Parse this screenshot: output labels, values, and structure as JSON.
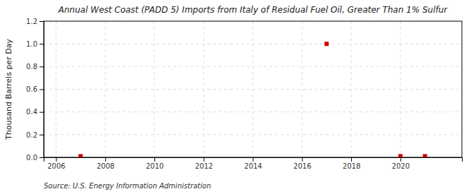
{
  "chart_data": {
    "type": "scatter",
    "title": "Annual West Coast (PADD 5) Imports from Italy of Residual Fuel Oil, Greater Than 1% Sulfur",
    "ylabel": "Thousand Barrels per Day",
    "source": "Source: U.S. Energy Information Administration",
    "x": [
      2007,
      2017,
      2020,
      2021
    ],
    "values": [
      0.01,
      1.0,
      0.01,
      0.01
    ],
    "color": "#cc0000",
    "marker": "square",
    "xlim": [
      2005.5,
      2022.5
    ],
    "ylim": [
      0.0,
      1.2
    ],
    "xticks": [
      2006,
      2008,
      2010,
      2012,
      2014,
      2016,
      2018,
      2020
    ],
    "yticks": [
      {
        "value": 0.0,
        "label": "0.0"
      },
      0.2,
      0.4,
      0.6,
      0.8,
      {
        "value": 1.0,
        "label": "1.0"
      },
      1.2
    ],
    "grid": true
  }
}
